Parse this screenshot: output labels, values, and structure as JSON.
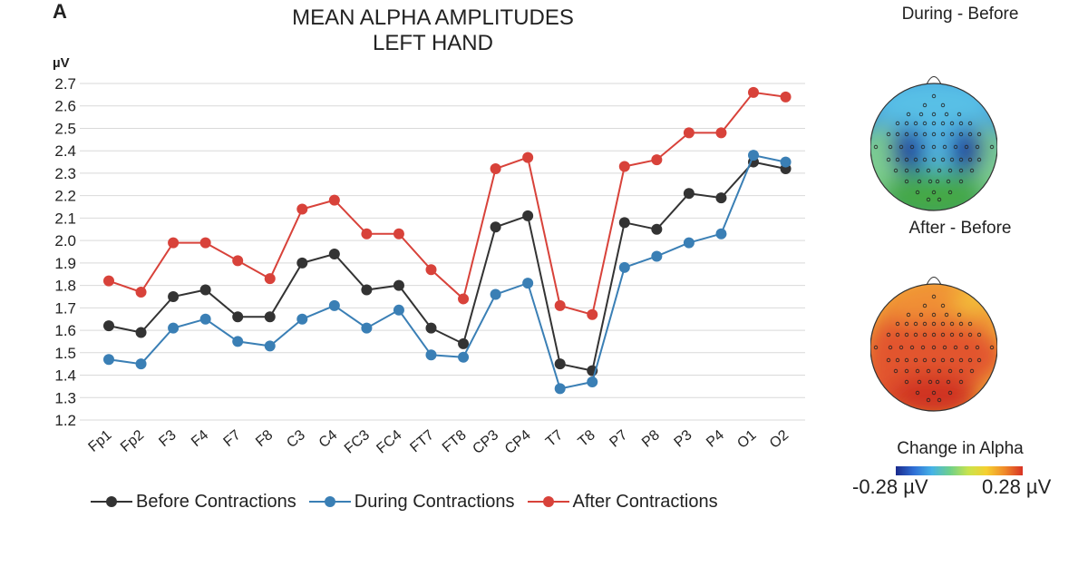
{
  "panel_letter": "A",
  "chart_data": {
    "type": "line",
    "title": [
      "MEAN ALPHA AMPLITUDES",
      "LEFT HAND"
    ],
    "ylabel": "µV",
    "ylim": [
      1.2,
      2.7
    ],
    "yticks": [
      "1.2",
      "1.3",
      "1.4",
      "1.5",
      "1.6",
      "1.7",
      "1.8",
      "1.9",
      "2.0",
      "2.1",
      "2.2",
      "2.3",
      "2.4",
      "2.5",
      "2.6",
      "2.7"
    ],
    "grid": true,
    "legend_position": "bottom",
    "categories": [
      "Fp1",
      "Fp2",
      "F3",
      "F4",
      "F7",
      "F8",
      "C3",
      "C4",
      "FC3",
      "FC4",
      "FT7",
      "FT8",
      "CP3",
      "CP4",
      "T7",
      "T8",
      "P7",
      "P8",
      "P3",
      "P4",
      "O1",
      "O2"
    ],
    "series": [
      {
        "name": "Before Contractions",
        "color": "#333333",
        "values": [
          1.62,
          1.59,
          1.75,
          1.78,
          1.66,
          1.66,
          1.9,
          1.94,
          1.78,
          1.8,
          1.61,
          1.54,
          2.06,
          2.11,
          1.45,
          1.42,
          2.08,
          2.05,
          2.21,
          2.19,
          2.35,
          2.32
        ]
      },
      {
        "name": "During Contractions",
        "color": "#3a7fb5",
        "values": [
          1.47,
          1.45,
          1.61,
          1.65,
          1.55,
          1.53,
          1.65,
          1.71,
          1.61,
          1.69,
          1.49,
          1.48,
          1.76,
          1.81,
          1.34,
          1.37,
          1.88,
          1.93,
          1.99,
          2.03,
          2.38,
          2.35
        ]
      },
      {
        "name": "After Contractions",
        "color": "#d8423a",
        "values": [
          1.82,
          1.77,
          1.99,
          1.99,
          1.91,
          1.83,
          2.14,
          2.18,
          2.03,
          2.03,
          1.87,
          1.74,
          2.32,
          2.37,
          1.71,
          1.67,
          2.33,
          2.36,
          2.48,
          2.48,
          2.66,
          2.64
        ]
      }
    ]
  },
  "topomaps": [
    {
      "title": "During - Before",
      "colors": [
        "#3a8fdc",
        "#58c0e6",
        "#7fd08f",
        "#44a847",
        "#1f3f9e"
      ]
    },
    {
      "title": "After - Before",
      "colors": [
        "#f3c43a",
        "#f09035",
        "#e2552d",
        "#cf3322"
      ]
    }
  ],
  "colorbar": {
    "title": "Change in Alpha",
    "min_label": "-0.28 µV",
    "max_label": "0.28 µV"
  }
}
